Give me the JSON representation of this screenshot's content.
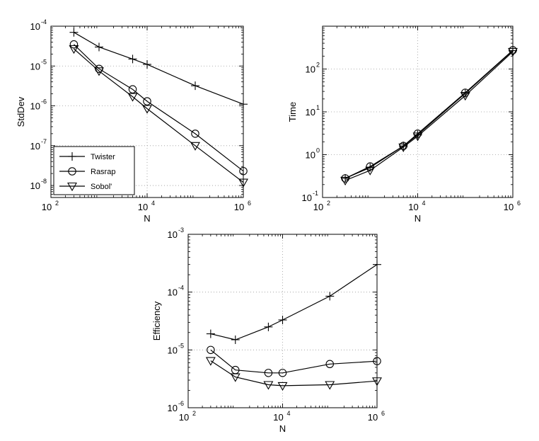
{
  "chart_data": [
    {
      "type": "line",
      "title": "",
      "xlabel": "N",
      "ylabel": "StdDev",
      "x_scale": "log",
      "y_scale": "log",
      "xlim": [
        100,
        1000000
      ],
      "ylim": [
        5e-09,
        0.0001
      ],
      "x_ticks": [
        100,
        10000,
        1000000
      ],
      "x_tick_labels": [
        {
          "base": "10",
          "exp": "2"
        },
        {
          "base": "10",
          "exp": "4"
        },
        {
          "base": "10",
          "exp": "6"
        }
      ],
      "y_ticks": [
        1e-08,
        1e-07,
        1e-06,
        1e-05,
        0.0001
      ],
      "y_tick_labels": [
        {
          "base": "10",
          "exp": "-8"
        },
        {
          "base": "10",
          "exp": "-7"
        },
        {
          "base": "10",
          "exp": "-6"
        },
        {
          "base": "10",
          "exp": "-5"
        },
        {
          "base": "10",
          "exp": "-4"
        }
      ],
      "grid": true,
      "legend": {
        "position": "bottom-left",
        "entries": [
          "Twister",
          "Rasrap",
          "Sobol'"
        ]
      },
      "x": [
        300,
        1000,
        5000,
        10000,
        100000,
        1000000
      ],
      "series": [
        {
          "name": "Twister",
          "marker": "plus",
          "values": [
            7e-05,
            3e-05,
            1.5e-05,
            1.1e-05,
            3.2e-06,
            1.1e-06
          ]
        },
        {
          "name": "Rasrap",
          "marker": "circle",
          "values": [
            3.5e-05,
            8.5e-06,
            2.6e-06,
            1.3e-06,
            2e-07,
            2.3e-08
          ]
        },
        {
          "name": "Sobol'",
          "marker": "triangle-down",
          "values": [
            2.7e-05,
            7.5e-06,
            1.7e-06,
            8.5e-07,
            1e-07,
            1.2e-08
          ]
        }
      ]
    },
    {
      "type": "line",
      "title": "",
      "xlabel": "N",
      "ylabel": "Time",
      "x_scale": "log",
      "y_scale": "log",
      "xlim": [
        100,
        1000000
      ],
      "ylim": [
        0.1,
        1000
      ],
      "x_ticks": [
        100,
        10000,
        1000000
      ],
      "x_tick_labels": [
        {
          "base": "10",
          "exp": "2"
        },
        {
          "base": "10",
          "exp": "4"
        },
        {
          "base": "10",
          "exp": "6"
        }
      ],
      "y_ticks": [
        0.1,
        1,
        10,
        100
      ],
      "y_tick_labels": [
        {
          "base": "10",
          "exp": "-1"
        },
        {
          "base": "10",
          "exp": "0"
        },
        {
          "base": "10",
          "exp": "1"
        },
        {
          "base": "10",
          "exp": "2"
        }
      ],
      "grid": true,
      "x": [
        300,
        1000,
        5000,
        10000,
        100000,
        1000000
      ],
      "series": [
        {
          "marker": "plus",
          "values": [
            0.28,
            0.5,
            1.6,
            2.9,
            27,
            270
          ]
        },
        {
          "marker": "circle",
          "values": [
            0.28,
            0.53,
            1.6,
            3.1,
            28,
            275
          ]
        },
        {
          "marker": "triangle-down",
          "values": [
            0.25,
            0.43,
            1.5,
            2.7,
            24,
            255
          ]
        }
      ]
    },
    {
      "type": "line",
      "title": "",
      "xlabel": "N",
      "ylabel": "Efficiency",
      "x_scale": "log",
      "y_scale": "log",
      "xlim": [
        100,
        1000000
      ],
      "ylim": [
        1e-06,
        0.001
      ],
      "x_ticks": [
        100,
        10000,
        1000000
      ],
      "x_tick_labels": [
        {
          "base": "10",
          "exp": "2"
        },
        {
          "base": "10",
          "exp": "4"
        },
        {
          "base": "10",
          "exp": "6"
        }
      ],
      "y_ticks": [
        1e-06,
        1e-05,
        0.0001,
        0.001
      ],
      "y_tick_labels": [
        {
          "base": "10",
          "exp": "-6"
        },
        {
          "base": "10",
          "exp": "-5"
        },
        {
          "base": "10",
          "exp": "-4"
        },
        {
          "base": "10",
          "exp": "-3"
        }
      ],
      "grid": true,
      "x": [
        300,
        1000,
        5000,
        10000,
        100000,
        1000000
      ],
      "series": [
        {
          "marker": "plus",
          "values": [
            1.9e-05,
            1.5e-05,
            2.5e-05,
            3.3e-05,
            8.5e-05,
            0.0003
          ]
        },
        {
          "marker": "circle",
          "values": [
            1e-05,
            4.5e-06,
            4e-06,
            4e-06,
            5.7e-06,
            6.4e-06
          ]
        },
        {
          "marker": "triangle-down",
          "values": [
            6.5e-06,
            3.4e-06,
            2.5e-06,
            2.4e-06,
            2.5e-06,
            2.9e-06
          ]
        }
      ]
    }
  ]
}
